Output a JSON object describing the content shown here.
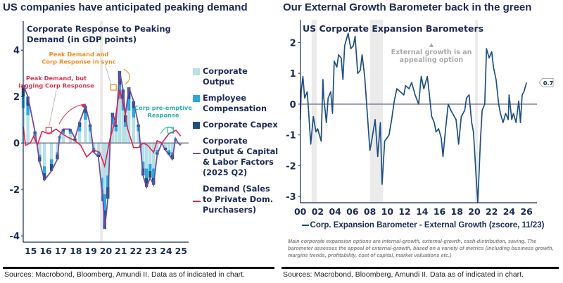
{
  "headlines": {
    "left": "US companies have anticipated peaking demand",
    "right": "Our External Growth Barometer back in the green"
  },
  "sources": {
    "left": "Sources:  Macrobond, Bloomberg, Amundi II. Data as of indicated in chart.",
    "right": "Sources:  Macrobond, Bloomberg, Amundi II. Data as of indicated in chart."
  },
  "colors": {
    "navy": "#1b2a55",
    "corporate_output": "#b7dfe6",
    "employee_compensation": "#29a9de",
    "corporate_capex": "#1e4f82",
    "total_line": "#6a4fa3",
    "demand_line": "#e0234e",
    "barometer": "#1e4f82",
    "annotation_red": "#d9304f",
    "annotation_orange": "#f08a1c",
    "annotation_teal": "#2bb3b1",
    "shade": "#ebebeb"
  },
  "chart_data": [
    {
      "type": "bar+line",
      "title": "Corporate Response to Peaking Demand (in GDP points)",
      "ylim": [
        -4.27,
        5.25
      ],
      "yticks": [
        4,
        2,
        0,
        -2,
        -4
      ],
      "ytick_labels": [
        "4",
        "2",
        "0",
        "-2",
        "-4"
      ],
      "xlim": [
        2015.0,
        2026.0
      ],
      "xticks": [
        2015.5,
        2016.5,
        2017.5,
        2018.5,
        2019.5,
        2020.5,
        2021.5,
        2022.5,
        2023.5,
        2024.5,
        2025.5
      ],
      "xtick_labels": [
        "15",
        "16",
        "17",
        "18",
        "19",
        "20",
        "21",
        "22",
        "23",
        "24",
        "25"
      ],
      "grid": false,
      "legend": "right",
      "shaded_periods": [
        [
          2020.1,
          2020.3
        ]
      ],
      "x": [
        2015.0,
        2015.31,
        2015.78,
        2016.09,
        2016.41,
        2016.88,
        2017.27,
        2017.42,
        2017.66,
        2018.13,
        2018.44,
        2018.75,
        2019.14,
        2019.45,
        2019.69,
        2020.0,
        2020.31,
        2020.42,
        2020.63,
        2020.78,
        2020.94,
        2021.17,
        2021.41,
        2021.64,
        2021.8,
        2022.03,
        2022.34,
        2022.66,
        2022.81,
        2022.97,
        2023.2,
        2023.44,
        2023.67,
        2023.91,
        2024.22,
        2024.45,
        2024.69,
        2024.92,
        2025.13,
        2025.31,
        2025.47
      ],
      "series": [
        {
          "name": "Corporate Output",
          "kind": "bar",
          "values": [
            1.5,
            1.2,
            0.3,
            -0.5,
            -1.0,
            -0.7,
            -0.4,
            0.2,
            0.4,
            0.4,
            0.1,
            0.5,
            1.0,
            0.5,
            -0.2,
            -0.4,
            -1.5,
            -2.2,
            -1.4,
            0,
            0.8,
            0.5,
            1.9,
            1.4,
            0.7,
            1.4,
            1.1,
            0.5,
            -0.1,
            -0.8,
            -1.1,
            -0.9,
            -1.1,
            -0.3,
            0,
            -0.2,
            -0.3,
            -0.4,
            0.1,
            0,
            -0.1
          ]
        },
        {
          "name": "Employee Compensation",
          "kind": "bar",
          "values": [
            0.5,
            0.4,
            0.1,
            -0.1,
            -0.3,
            -0.2,
            -0.1,
            0.1,
            0.1,
            0.1,
            0,
            0.2,
            0.3,
            0.2,
            -0.1,
            -0.1,
            -0.5,
            -0.7,
            -0.5,
            0,
            0.3,
            0.2,
            0.6,
            0.5,
            0.2,
            0.5,
            0.4,
            0.2,
            0,
            -0.3,
            -0.4,
            -0.3,
            -0.4,
            -0.1,
            0,
            0,
            -0.1,
            -0.1,
            0.1,
            0,
            0
          ]
        },
        {
          "name": "Corporate Capex",
          "kind": "bar",
          "values": [
            0.5,
            0.4,
            0.1,
            -0.2,
            -0.3,
            -0.3,
            -0.2,
            0,
            0.1,
            0.1,
            0.1,
            0.2,
            0.3,
            0.1,
            -0.1,
            -0.1,
            -0.5,
            -0.8,
            -0.5,
            0,
            0.2,
            0.1,
            0.6,
            0.4,
            0.3,
            0.5,
            0.3,
            0.1,
            -0.1,
            -0.3,
            -0.4,
            -0.3,
            -0.3,
            -0.1,
            0,
            -0.1,
            -0.1,
            -0.2,
            0,
            0,
            0
          ]
        },
        {
          "name": "Corporate Output & Capital & Labor Factors (2025 Q2)",
          "kind": "line",
          "values": [
            2.5,
            2.0,
            0.5,
            -0.8,
            -1.6,
            -1.2,
            -0.7,
            0.3,
            0.6,
            0.6,
            0.2,
            0.9,
            1.6,
            0.8,
            -0.4,
            -0.6,
            -2.5,
            -3.7,
            -2.4,
            0,
            1.3,
            0.8,
            3.1,
            2.3,
            1.2,
            2.4,
            1.8,
            0.8,
            -0.2,
            -1.4,
            -1.9,
            -1.5,
            -1.8,
            -0.5,
            0,
            -0.3,
            -0.5,
            -0.7,
            0.2,
            0,
            -0.1
          ]
        },
        {
          "name": "Demand (Sales to Private Dom. Purchasers)",
          "kind": "line",
          "x": [
            2015.0,
            2015.16,
            2015.47,
            2015.7,
            2015.94,
            2016.25,
            2016.72,
            2017.19,
            2017.58,
            2017.97,
            2018.44,
            2018.83,
            2019.22,
            2019.69,
            2020.08,
            2020.42,
            2020.78,
            2021.09,
            2021.41,
            2021.72,
            2021.95,
            2022.34,
            2022.66,
            2022.97,
            2023.28,
            2023.67,
            2023.91,
            2024.22,
            2024.69,
            2025.16,
            2025.47
          ],
          "values": [
            0.7,
            -0.1,
            0,
            0.3,
            -0.1,
            0.5,
            0.4,
            0.6,
            0.4,
            0.25,
            0.1,
            -0.1,
            -0.6,
            -0.3,
            -0.4,
            -1.0,
            0.2,
            0.9,
            2.3,
            1.5,
            0.6,
            -0.2,
            -0.2,
            0,
            -0.1,
            -0.4,
            0.1,
            0,
            0.4,
            0.55,
            0.3
          ]
        }
      ],
      "legend_entries": [
        "Corporate Output",
        "Employee Compensation",
        "Corporate Capex",
        "Corporate Output & Capital & Labor Factors (2025 Q2)",
        "Demand (Sales to Private Dom. Purchasers)"
      ],
      "annotations": [
        {
          "text": "Peak Demand, but lagging Corp Response",
          "lines": [
            "Peak Demand, but",
            "lagging Corp Response"
          ],
          "x": 2016.7,
          "y": 0.55
        },
        {
          "text": "Peak Demand and Corp Response in sync",
          "lines": [
            "Peak Demand and",
            "Corp Response in sync"
          ],
          "x": 2021.0,
          "y": 2.4
        },
        {
          "text": "Corp pre-emptive Response",
          "lines": [
            "Corp pre-emptive",
            "Response"
          ],
          "x": 2024.8,
          "y": 0.55
        }
      ]
    },
    {
      "type": "line",
      "title": "US Corporate Expansion Barometers",
      "ylim": [
        -3.2,
        2.74
      ],
      "yticks": [
        2,
        1,
        0,
        -1,
        -2,
        -3
      ],
      "ytick_labels": [
        "2",
        "1",
        "0",
        "-1",
        "-2",
        "-3"
      ],
      "xlim": [
        2000,
        2027.2
      ],
      "xticks": [
        2000,
        2002,
        2004,
        2006,
        2008,
        2010,
        2012,
        2014,
        2016,
        2018,
        2020,
        2022,
        2024,
        2026
      ],
      "xtick_labels": [
        "00",
        "02",
        "04",
        "06",
        "08",
        "10",
        "12",
        "14",
        "16",
        "18",
        "20",
        "22",
        "24",
        "26"
      ],
      "grid": false,
      "legend": "bottom",
      "shaded_periods": [
        [
          2001.3,
          2001.9
        ],
        [
          2008.0,
          2009.5
        ],
        [
          2020.1,
          2020.4
        ]
      ],
      "series": [
        {
          "name": "Corp. Expansion Barometer - External Growth (zscore, 11/23)",
          "x": [
            2000.0,
            2000.1,
            2000.3,
            2000.5,
            2000.8,
            2000.9,
            2001.2,
            2001.5,
            2001.8,
            2002.0,
            2002.4,
            2002.6,
            2002.7,
            2003.0,
            2003.2,
            2003.5,
            2003.7,
            2003.9,
            2004.2,
            2004.4,
            2004.7,
            2004.9,
            2005.1,
            2005.5,
            2005.8,
            2006.1,
            2006.3,
            2006.6,
            2006.9,
            2007.1,
            2007.4,
            2007.7,
            2008.0,
            2008.2,
            2008.6,
            2008.9,
            2009.2,
            2009.4,
            2009.7,
            2010.2,
            2010.5,
            2010.8,
            2011.1,
            2011.5,
            2011.9,
            2012.1,
            2012.5,
            2012.8,
            2013.2,
            2013.6,
            2013.9,
            2014.2,
            2014.6,
            2014.8,
            2015.1,
            2015.4,
            2015.6,
            2015.9,
            2016.2,
            2016.4,
            2016.7,
            2017.0,
            2017.3,
            2017.7,
            2017.9,
            2018.2,
            2018.5,
            2018.9,
            2019.1,
            2019.4,
            2019.7,
            2019.9,
            2020.2,
            2020.4,
            2020.7,
            2020.9,
            2021.2,
            2021.4,
            2021.7,
            2022.0,
            2022.2,
            2022.5,
            2022.8,
            2023.0,
            2023.3,
            2023.6,
            2023.9,
            2024.0,
            2024.3,
            2024.5,
            2024.8,
            2025.1,
            2025.2,
            2025.3,
            2025.5,
            2025.7,
            2026.0
          ],
          "values": [
            -0.5,
            0.4,
            0.9,
            0.2,
            0.4,
            0,
            -1.3,
            -0.4,
            -0.9,
            -0.8,
            -1.2,
            0.8,
            0.2,
            -0.6,
            0.2,
            0.4,
            -0.3,
            1.4,
            1.2,
            1.6,
            1.5,
            0.8,
            1.9,
            2.3,
            1.8,
            1.9,
            2.2,
            1.0,
            1.1,
            1.6,
            0.9,
            -0.3,
            -1.5,
            -1.2,
            -0.5,
            -1.7,
            -0.6,
            -2.6,
            -1.2,
            -1.0,
            -0.5,
            0.1,
            0.5,
            0.4,
            0.3,
            0.6,
            0.5,
            0.7,
            0.3,
            0.0,
            0.9,
            0.5,
            0.9,
            0.4,
            -0.4,
            -0.6,
            -0.9,
            -0.8,
            -1.1,
            -1.7,
            -0.8,
            0,
            -0.2,
            -0.4,
            -0.5,
            -1.3,
            -0.4,
            -0.2,
            0.2,
            0.3,
            -0.6,
            -0.9,
            -2.3,
            -3.2,
            -1.2,
            -0.2,
            0,
            1.8,
            1.5,
            1.7,
            1.2,
            0.8,
            0,
            -0.3,
            -0.6,
            -0.3,
            -0.5,
            0.3,
            -0.5,
            -0.3,
            -0.6,
            0.1,
            -0.2,
            -0.6,
            0.3,
            0.4,
            0.7
          ]
        }
      ],
      "last_value_label": "0.7",
      "annotation": {
        "arrow": "▲",
        "lines": [
          "External growth is an",
          "appealing option"
        ]
      },
      "caption": "Main corporate expansion options are internal-growth, external-growth, cash-distribution, saving. The barometer assesses the appeal of external-growth, based on a variety of metrics (including business growth, margins trends, profitability, cost of capital, market valuations etc.)"
    }
  ]
}
